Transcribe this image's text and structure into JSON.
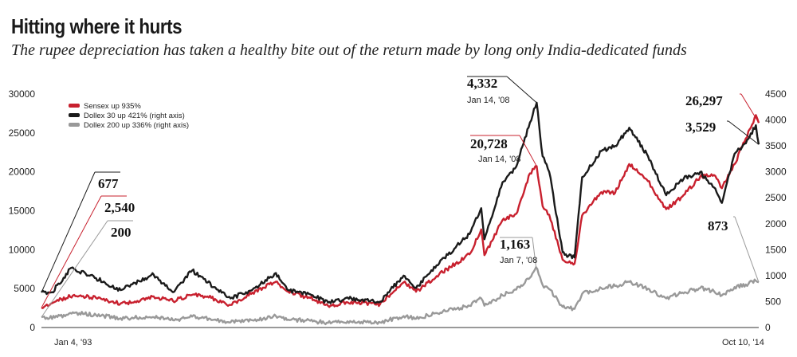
{
  "header": {
    "title": "Hitting where it hurts",
    "subtitle": "The rupee depreciation has taken a healthy bite out of the return made by long only India-dedicated funds"
  },
  "chart_data": {
    "type": "line",
    "x_start_label": "Jan 4, '93",
    "x_end_label": "Oct 10, '14",
    "x_range": [
      "1993-01-04",
      "2014-10-10"
    ],
    "left_axis": {
      "ylim": [
        0,
        30000
      ],
      "ticks": [
        "0",
        "5000",
        "10000",
        "15000",
        "20000",
        "25000",
        "30000"
      ]
    },
    "right_axis": {
      "ylim": [
        0,
        4500
      ],
      "ticks": [
        "0",
        "500",
        "1000",
        "1500",
        "2000",
        "2500",
        "3000",
        "3500",
        "4000",
        "4500"
      ]
    },
    "grid": false,
    "legend_position": "top-left",
    "legend": [
      {
        "label": "Sensex up 935%",
        "color": "#c8202e"
      },
      {
        "label": "Dollex 30  up 421% (right axis)",
        "color": "#1a1a1a"
      },
      {
        "label": "Dollex 200 up 336% (right axis)",
        "color": "#999999"
      }
    ],
    "series": [
      {
        "name": "Sensex up 935%",
        "axis": "left",
        "color": "#c8202e",
        "x": [
          "1993-01-04",
          "1993-06-01",
          "1994-01-01",
          "1994-09-01",
          "1995-06-01",
          "1996-01-01",
          "1996-06-01",
          "1997-01-01",
          "1997-08-01",
          "1998-03-01",
          "1998-10-01",
          "1999-06-01",
          "2000-02-15",
          "2000-07-01",
          "2001-03-01",
          "2001-09-15",
          "2002-06-01",
          "2003-04-15",
          "2003-12-31",
          "2004-05-17",
          "2004-12-31",
          "2005-12-31",
          "2006-05-10",
          "2006-06-14",
          "2006-12-31",
          "2007-06-01",
          "2007-10-31",
          "2008-01-14",
          "2008-03-20",
          "2008-06-01",
          "2008-10-27",
          "2008-11-20",
          "2009-03-09",
          "2009-06-01",
          "2009-12-31",
          "2010-06-01",
          "2010-11-05",
          "2011-06-01",
          "2011-12-20",
          "2012-06-01",
          "2012-12-31",
          "2013-06-01",
          "2013-08-28",
          "2014-01-15",
          "2014-05-20",
          "2014-09-08",
          "2014-10-10"
        ],
        "values": [
          2540,
          3300,
          4200,
          3800,
          3100,
          3400,
          4000,
          3400,
          4200,
          3800,
          2900,
          4500,
          5900,
          4600,
          3800,
          2800,
          3300,
          3000,
          5800,
          4600,
          6600,
          9400,
          12600,
          9300,
          13800,
          14600,
          19800,
          20728,
          15600,
          14500,
          8700,
          8500,
          8200,
          14400,
          17400,
          17300,
          21000,
          18800,
          15200,
          16700,
          19400,
          19600,
          17900,
          21000,
          24300,
          27300,
          26297
        ]
      },
      {
        "name": "Dollex 30  up 421% (right axis)",
        "axis": "right",
        "color": "#1a1a1a",
        "x": [
          "1993-01-04",
          "1993-05-01",
          "1993-12-01",
          "1994-09-01",
          "1995-06-01",
          "1996-03-01",
          "1996-06-01",
          "1997-01-01",
          "1997-08-01",
          "1998-04-01",
          "1998-10-01",
          "1999-06-01",
          "2000-02-15",
          "2000-07-01",
          "2001-03-01",
          "2001-09-15",
          "2002-06-01",
          "2003-04-15",
          "2003-12-31",
          "2004-05-17",
          "2004-12-31",
          "2005-12-31",
          "2006-05-10",
          "2006-06-14",
          "2006-12-31",
          "2007-06-01",
          "2007-10-31",
          "2008-01-14",
          "2008-03-20",
          "2008-06-01",
          "2008-10-27",
          "2008-11-20",
          "2009-03-09",
          "2009-06-01",
          "2009-12-31",
          "2010-06-01",
          "2010-11-05",
          "2011-06-01",
          "2011-12-20",
          "2012-06-01",
          "2012-12-31",
          "2013-06-01",
          "2013-08-28",
          "2014-01-15",
          "2014-05-20",
          "2014-09-08",
          "2014-10-10"
        ],
        "values": [
          677,
          680,
          1150,
          950,
          720,
          950,
          1020,
          680,
          1100,
          780,
          560,
          730,
          1050,
          720,
          640,
          480,
          560,
          500,
          1000,
          760,
          1200,
          1800,
          2300,
          1700,
          2800,
          3100,
          3950,
          4332,
          3300,
          3000,
          1450,
          1400,
          1350,
          2900,
          3400,
          3500,
          3850,
          3300,
          2550,
          2850,
          3000,
          2700,
          2400,
          3350,
          3550,
          3900,
          3529
        ]
      },
      {
        "name": "Dollex 200 up 336% (right axis)",
        "axis": "right",
        "color": "#999999",
        "x": [
          "1993-01-04",
          "1993-06-01",
          "1994-01-01",
          "1994-09-01",
          "1995-06-01",
          "1996-06-01",
          "1997-01-01",
          "1997-08-01",
          "1998-04-01",
          "1998-10-01",
          "1999-06-01",
          "2000-02-15",
          "2000-07-01",
          "2001-03-01",
          "2001-09-15",
          "2002-06-01",
          "2003-04-15",
          "2003-12-31",
          "2004-05-17",
          "2004-12-31",
          "2005-12-31",
          "2006-05-10",
          "2006-06-14",
          "2006-12-31",
          "2007-06-01",
          "2007-10-31",
          "2008-01-07",
          "2008-03-20",
          "2008-06-01",
          "2008-10-27",
          "2008-11-20",
          "2009-03-09",
          "2009-06-01",
          "2009-12-31",
          "2010-06-01",
          "2010-11-05",
          "2011-06-01",
          "2011-12-20",
          "2012-06-01",
          "2012-12-31",
          "2013-06-01",
          "2013-08-28",
          "2014-01-15",
          "2014-05-20",
          "2014-09-08",
          "2014-10-10"
        ],
        "values": [
          200,
          190,
          280,
          240,
          180,
          200,
          140,
          210,
          150,
          100,
          140,
          220,
          150,
          130,
          90,
          110,
          100,
          220,
          170,
          280,
          420,
          560,
          420,
          620,
          730,
          960,
          1163,
          820,
          740,
          400,
          380,
          360,
          650,
          760,
          800,
          880,
          750,
          560,
          660,
          760,
          700,
          620,
          780,
          830,
          900,
          873
        ]
      }
    ],
    "annotations": [
      {
        "text": "677",
        "series": "Dollex 30  up 421% (right axis)",
        "date": "1993-01-04"
      },
      {
        "text": "2,540",
        "series": "Sensex up 935%",
        "date": "1993-01-04"
      },
      {
        "text": "200",
        "series": "Dollex 200 up 336% (right axis)",
        "date": "1993-01-04"
      },
      {
        "text": "4,332",
        "sub": "Jan 14, '08",
        "series": "Dollex 30  up 421% (right axis)",
        "date": "2008-01-14"
      },
      {
        "text": "20,728",
        "sub": "Jan 14, '08",
        "series": "Sensex up 935%",
        "date": "2008-01-14"
      },
      {
        "text": "1,163",
        "sub": "Jan 7, '08",
        "series": "Dollex 200 up 336% (right axis)",
        "date": "2008-01-07"
      },
      {
        "text": "26,297",
        "series": "Sensex up 935%",
        "date": "2014-10-10"
      },
      {
        "text": "3,529",
        "series": "Dollex 30  up 421% (right axis)",
        "date": "2014-10-10"
      },
      {
        "text": "873",
        "series": "Dollex 200 up 336% (right axis)",
        "date": "2014-10-10"
      }
    ]
  }
}
